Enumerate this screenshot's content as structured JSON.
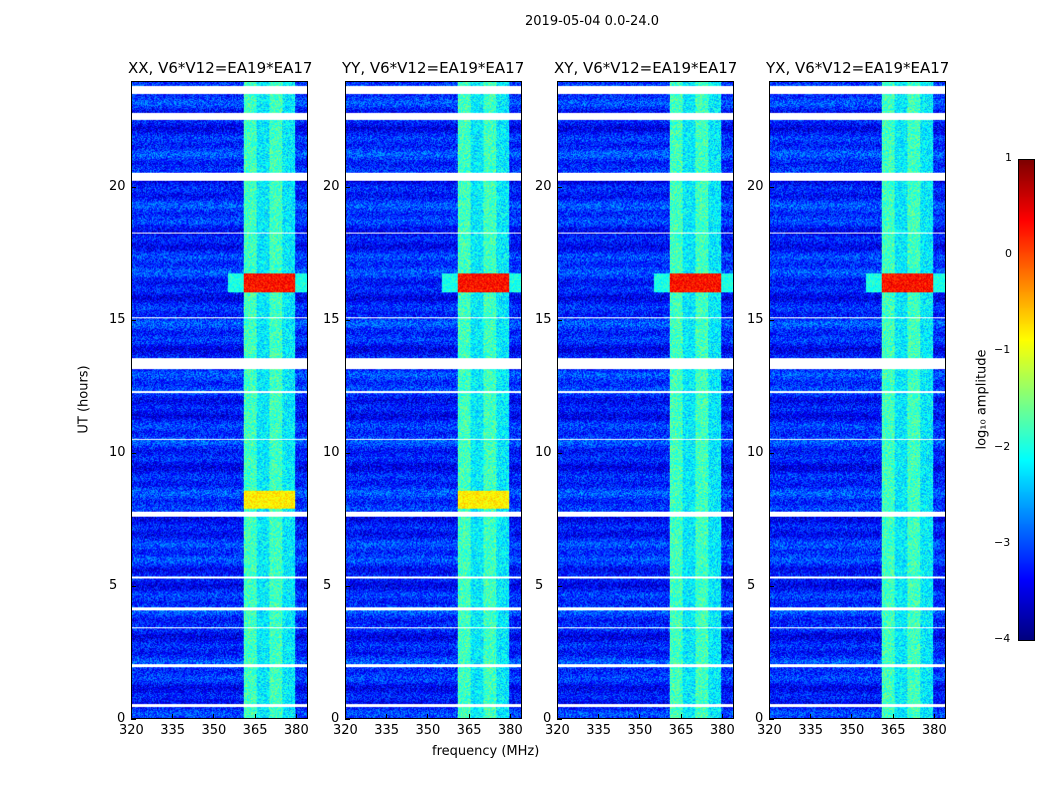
{
  "chart_data": {
    "type": "heatmap",
    "title": "2019-05-04 0.0-24.0",
    "xlabel": "frequency (MHz)",
    "ylabel": "UT (hours)",
    "xlim": [
      320,
      384.4
    ],
    "ylim": [
      0,
      24
    ],
    "xticks": [
      "320",
      "335",
      "350",
      "365",
      "380"
    ],
    "xtick_values": [
      320,
      335,
      350,
      365,
      380
    ],
    "yticks": [
      "0",
      "5",
      "10",
      "15",
      "20"
    ],
    "ytick_values": [
      0,
      5,
      10,
      15,
      20
    ],
    "panels": [
      {
        "title": "XX, V6*V12=EA19*EA17",
        "strong_8h": true
      },
      {
        "title": "YY, V6*V12=EA19*EA17",
        "strong_8h": true
      },
      {
        "title": "XY, V6*V12=EA19*EA17",
        "strong_8h": false
      },
      {
        "title": "YX, V6*V12=EA19*EA17",
        "strong_8h": false
      }
    ],
    "colorbar": {
      "label": "log₁₀ amplitude",
      "range": [
        -4,
        1
      ],
      "ticks": [
        "1",
        "0",
        "−1",
        "−2",
        "−3",
        "−4"
      ],
      "tick_values": [
        1,
        0,
        -1,
        -2,
        -3,
        -4
      ]
    },
    "background_level": -3.2,
    "rfi_band_mhz": [
      361,
      380
    ],
    "rfi_level": -1.8,
    "rfi_burst": {
      "hours": [
        16.1,
        16.8
      ],
      "level": 0.3
    },
    "rfi_burst_8h": {
      "hours": [
        7.9,
        8.6
      ],
      "level": -0.8
    },
    "flagged_hours": [
      [
        23.55,
        23.85
      ],
      [
        22.6,
        22.85
      ],
      [
        20.3,
        20.6
      ],
      [
        13.2,
        13.6
      ],
      [
        7.6,
        7.8
      ],
      [
        4.1,
        4.2
      ],
      [
        1.95,
        2.05
      ],
      [
        0.45,
        0.55
      ],
      [
        12.3,
        12.35
      ],
      [
        10.5,
        10.55
      ],
      [
        18.3,
        18.35
      ],
      [
        15.1,
        15.15
      ],
      [
        3.4,
        3.45
      ],
      [
        5.3,
        5.35
      ]
    ]
  }
}
